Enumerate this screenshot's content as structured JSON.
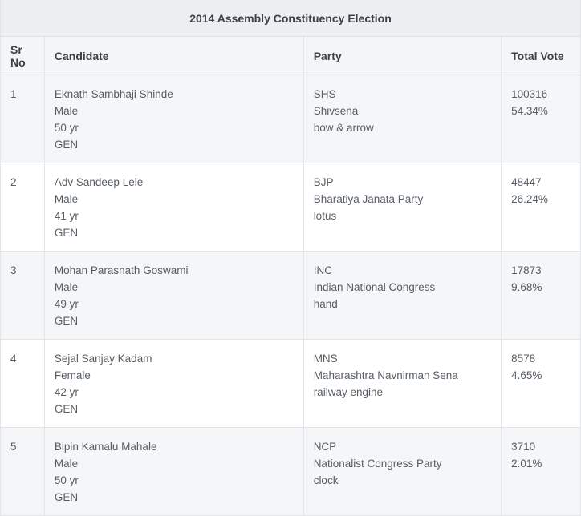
{
  "title": "2014 Assembly Constituency Election",
  "headers": {
    "sr_no": "Sr No",
    "candidate": "Candidate",
    "party": "Party",
    "total_vote": "Total Vote"
  },
  "rows": [
    {
      "sr": "1",
      "name": "Eknath Sambhaji Shinde",
      "gender": "Male",
      "age": "50 yr",
      "category": "GEN",
      "party_abbr": "SHS",
      "party_name": "Shivsena",
      "symbol": "bow & arrow",
      "votes": "100316",
      "percent": "54.34%"
    },
    {
      "sr": "2",
      "name": "Adv Sandeep Lele",
      "gender": "Male",
      "age": "41 yr",
      "category": "GEN",
      "party_abbr": "BJP",
      "party_name": "Bharatiya Janata Party",
      "symbol": "lotus",
      "votes": "48447",
      "percent": "26.24%"
    },
    {
      "sr": "3",
      "name": "Mohan Parasnath Goswami",
      "gender": "Male",
      "age": "49 yr",
      "category": "GEN",
      "party_abbr": "INC",
      "party_name": "Indian National Congress",
      "symbol": "hand",
      "votes": "17873",
      "percent": "9.68%"
    },
    {
      "sr": "4",
      "name": "Sejal Sanjay Kadam",
      "gender": "Female",
      "age": "42 yr",
      "category": "GEN",
      "party_abbr": "MNS",
      "party_name": "Maharashtra Navnirman Sena",
      "symbol": "railway engine",
      "votes": "8578",
      "percent": "4.65%"
    },
    {
      "sr": "5",
      "name": "Bipin Kamalu Mahale",
      "gender": "Male",
      "age": "50 yr",
      "category": "GEN",
      "party_abbr": "NCP",
      "party_name": "Nationalist Congress Party",
      "symbol": "clock",
      "votes": "3710",
      "percent": "2.01%"
    }
  ]
}
